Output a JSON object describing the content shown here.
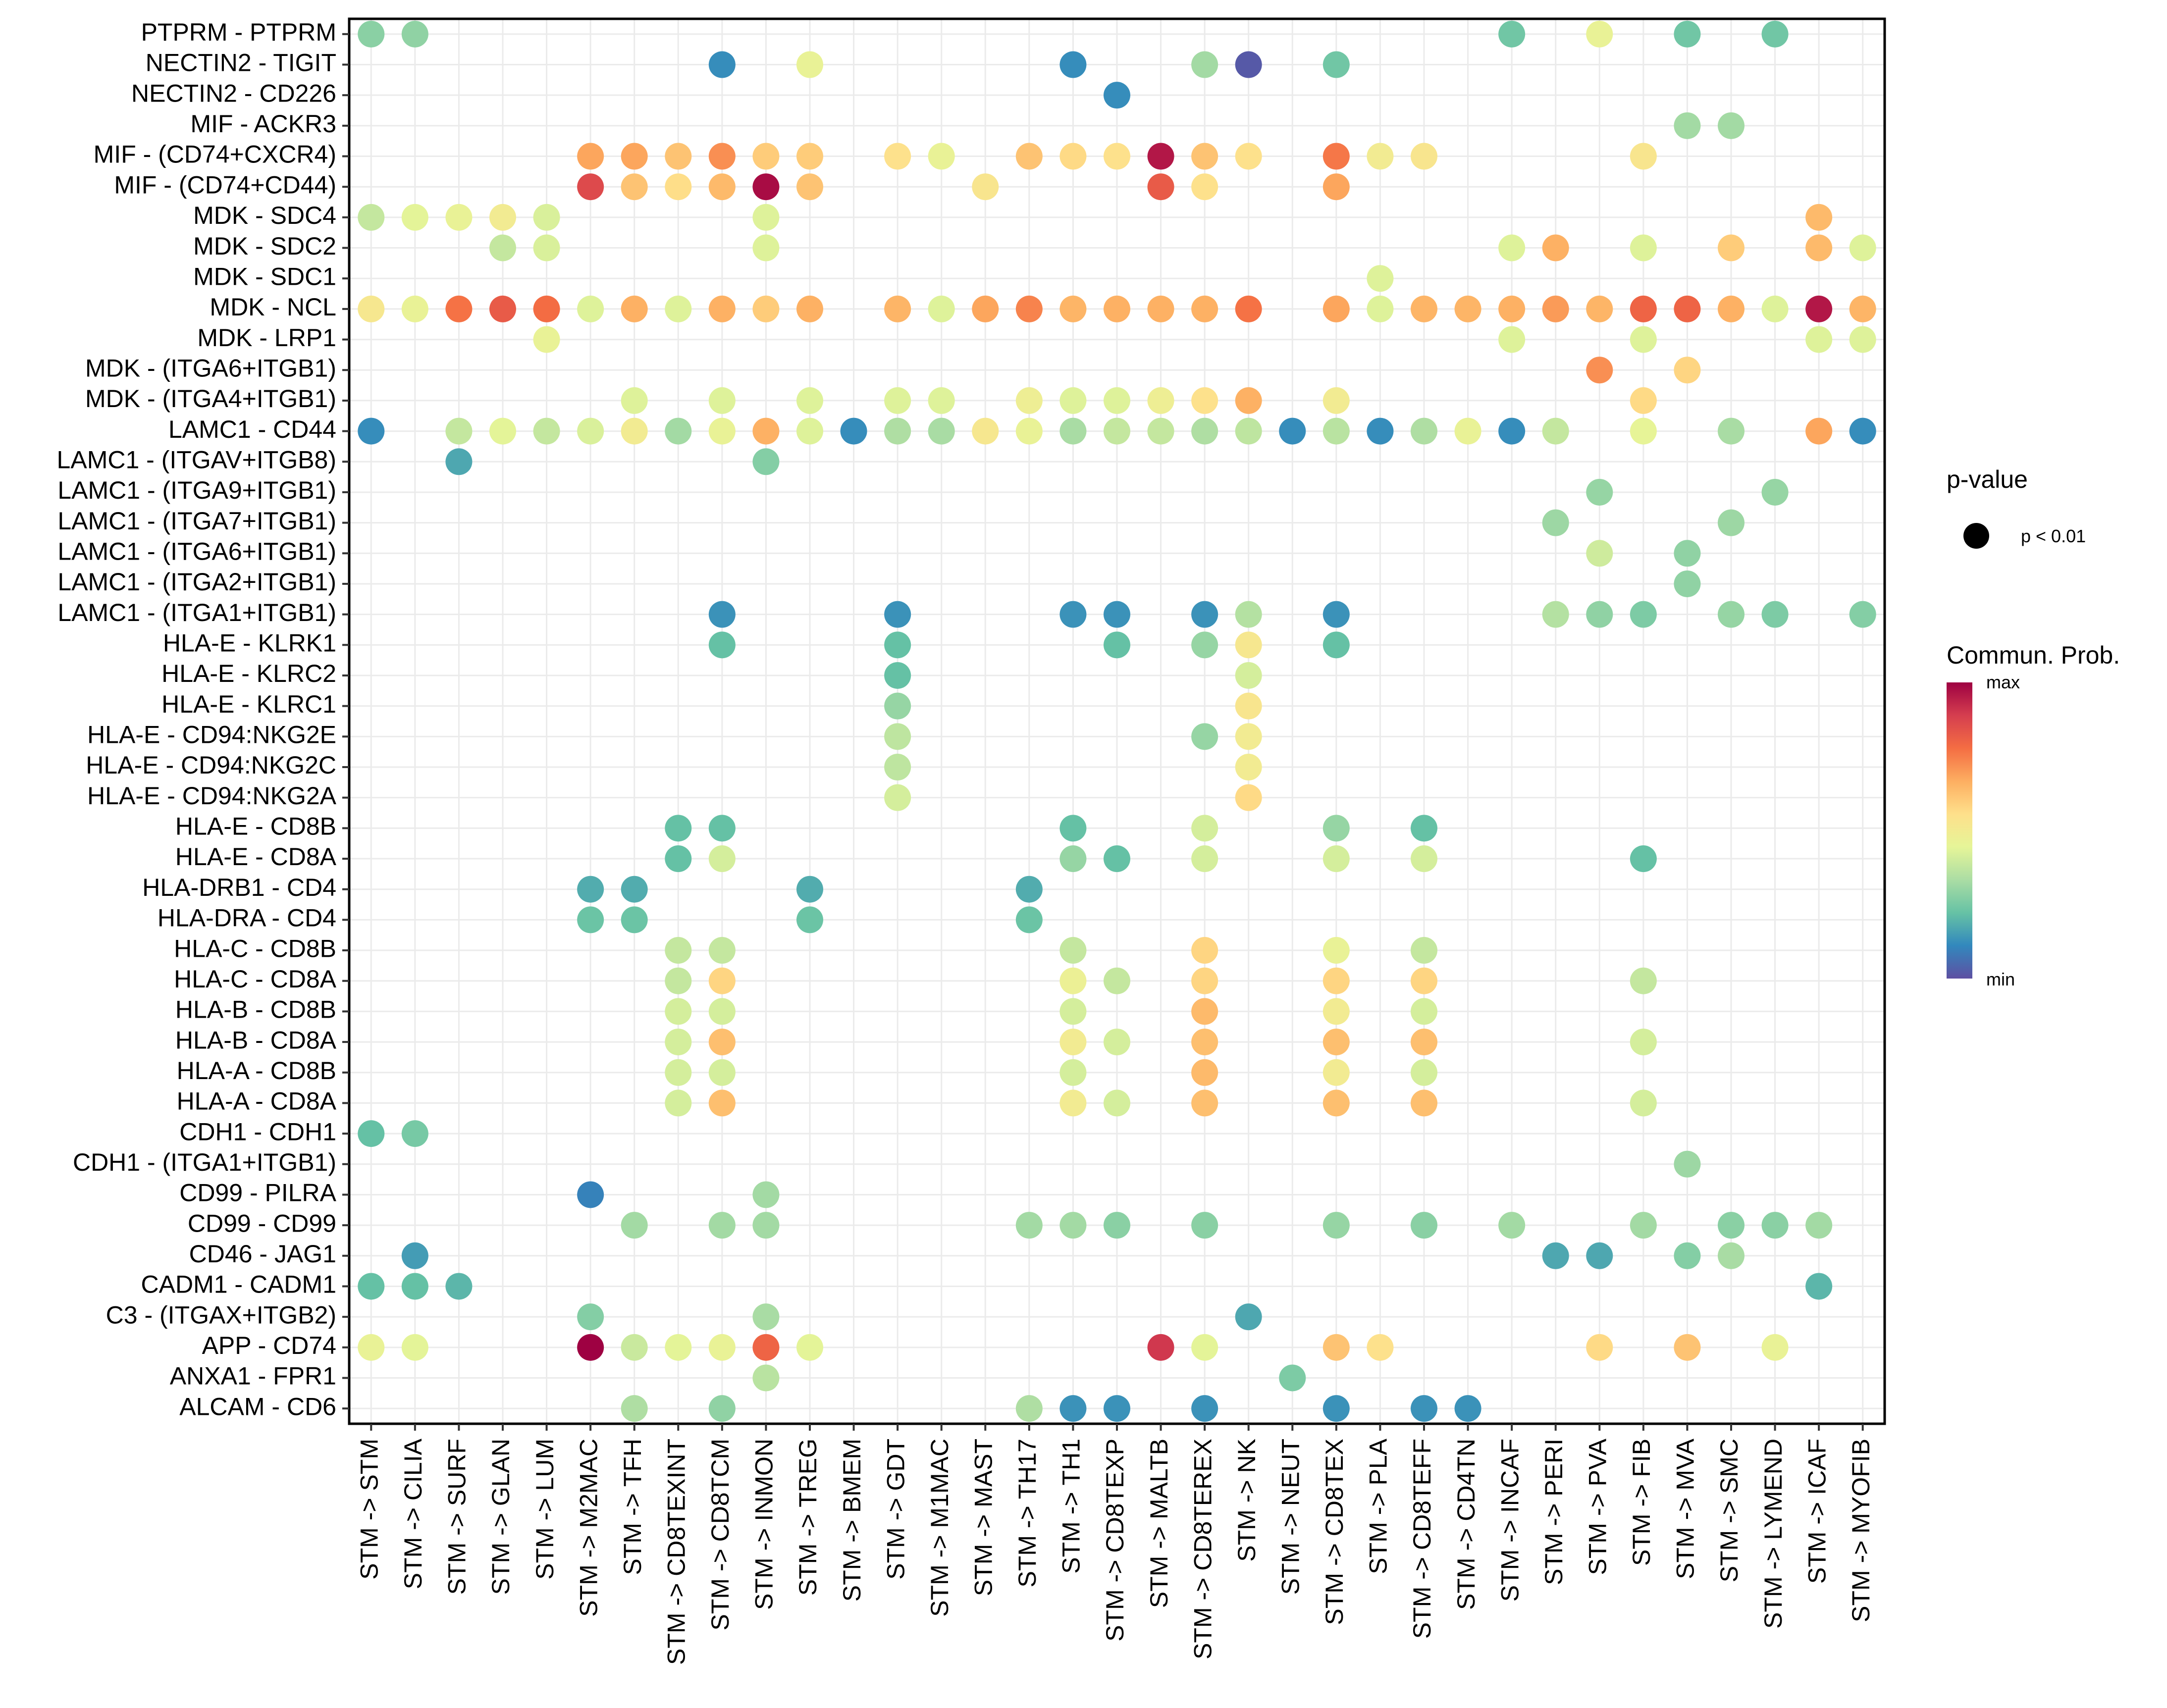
{
  "chart_data": {
    "type": "scatter",
    "subtype": "dot-matrix",
    "title": "",
    "xlabel": "",
    "ylabel": "",
    "grid": true,
    "x_categories": [
      "STM -> STM",
      "STM -> CILIA",
      "STM -> SURF",
      "STM -> GLAN",
      "STM -> LUM",
      "STM -> M2MAC",
      "STM -> TFH",
      "STM -> CD8TEXINT",
      "STM -> CD8TCM",
      "STM -> INMON",
      "STM -> TREG",
      "STM -> BMEM",
      "STM -> GDT",
      "STM -> M1MAC",
      "STM -> MAST",
      "STM -> TH17",
      "STM -> TH1",
      "STM -> CD8TEXP",
      "STM -> MALTB",
      "STM -> CD8TEREX",
      "STM -> NK",
      "STM -> NEUT",
      "STM -> CD8TEX",
      "STM -> PLA",
      "STM -> CD8TEFF",
      "STM -> CD4TN",
      "STM -> INCAF",
      "STM -> PERI",
      "STM -> PVA",
      "STM -> FIB",
      "STM -> MVA",
      "STM -> SMC",
      "STM -> LYMEND",
      "STM -> ICAF",
      "STM -> MYOFIB"
    ],
    "y_categories": [
      "PTPRM - PTPRM",
      "NECTIN2 - TIGIT",
      "NECTIN2 - CD226",
      "MIF - ACKR3",
      "MIF - (CD74+CXCR4)",
      "MIF - (CD74+CD44)",
      "MDK - SDC4",
      "MDK - SDC2",
      "MDK - SDC1",
      "MDK - NCL",
      "MDK - LRP1",
      "MDK - (ITGA6+ITGB1)",
      "MDK - (ITGA4+ITGB1)",
      "LAMC1 - CD44",
      "LAMC1 - (ITGAV+ITGB8)",
      "LAMC1 - (ITGA9+ITGB1)",
      "LAMC1 - (ITGA7+ITGB1)",
      "LAMC1 - (ITGA6+ITGB1)",
      "LAMC1 - (ITGA2+ITGB1)",
      "LAMC1 - (ITGA1+ITGB1)",
      "HLA-E - KLRK1",
      "HLA-E - KLRC2",
      "HLA-E - KLRC1",
      "HLA-E - CD94:NKG2E",
      "HLA-E - CD94:NKG2C",
      "HLA-E - CD94:NKG2A",
      "HLA-E - CD8B",
      "HLA-E - CD8A",
      "HLA-DRB1 - CD4",
      "HLA-DRA - CD4",
      "HLA-C - CD8B",
      "HLA-C - CD8A",
      "HLA-B - CD8B",
      "HLA-B - CD8A",
      "HLA-A - CD8B",
      "HLA-A - CD8A",
      "CDH1 - CDH1",
      "CDH1 - (ITGA1+ITGB1)",
      "CD99 - PILRA",
      "CD99 - CD99",
      "CD46 - JAG1",
      "CADM1 - CADM1",
      "C3 - (ITGAX+ITGB2)",
      "APP - CD74",
      "ANXA1 - FPR1",
      "ALCAM - CD6"
    ],
    "value_scale": "relative communication probability, 0 = min, 1 = max",
    "points_note": "each point: [x_index, y_index, prob]",
    "points": [
      [
        0,
        0,
        0.28
      ],
      [
        1,
        0,
        0.29
      ],
      [
        26,
        0,
        0.24
      ],
      [
        28,
        0,
        0.46
      ],
      [
        30,
        0,
        0.24
      ],
      [
        32,
        0,
        0.24
      ],
      [
        8,
        1,
        0.12
      ],
      [
        10,
        1,
        0.46
      ],
      [
        16,
        1,
        0.12
      ],
      [
        19,
        1,
        0.32
      ],
      [
        20,
        1,
        0.02
      ],
      [
        22,
        1,
        0.24
      ],
      [
        17,
        2,
        0.12
      ],
      [
        30,
        3,
        0.32
      ],
      [
        31,
        3,
        0.32
      ],
      [
        5,
        4,
        0.68
      ],
      [
        6,
        4,
        0.68
      ],
      [
        7,
        4,
        0.62
      ],
      [
        8,
        4,
        0.72
      ],
      [
        9,
        4,
        0.6
      ],
      [
        10,
        4,
        0.6
      ],
      [
        12,
        4,
        0.55
      ],
      [
        13,
        4,
        0.46
      ],
      [
        15,
        4,
        0.62
      ],
      [
        16,
        4,
        0.57
      ],
      [
        17,
        4,
        0.55
      ],
      [
        18,
        4,
        0.96
      ],
      [
        19,
        4,
        0.62
      ],
      [
        20,
        4,
        0.55
      ],
      [
        22,
        4,
        0.76
      ],
      [
        23,
        4,
        0.5
      ],
      [
        24,
        4,
        0.53
      ],
      [
        29,
        4,
        0.53
      ],
      [
        5,
        5,
        0.86
      ],
      [
        6,
        5,
        0.62
      ],
      [
        7,
        5,
        0.56
      ],
      [
        8,
        5,
        0.64
      ],
      [
        9,
        5,
        0.98
      ],
      [
        10,
        5,
        0.62
      ],
      [
        14,
        5,
        0.53
      ],
      [
        18,
        5,
        0.82
      ],
      [
        19,
        5,
        0.55
      ],
      [
        22,
        5,
        0.68
      ],
      [
        0,
        6,
        0.38
      ],
      [
        1,
        6,
        0.44
      ],
      [
        2,
        6,
        0.46
      ],
      [
        3,
        6,
        0.5
      ],
      [
        4,
        6,
        0.42
      ],
      [
        9,
        6,
        0.43
      ],
      [
        33,
        6,
        0.64
      ],
      [
        3,
        7,
        0.38
      ],
      [
        4,
        7,
        0.42
      ],
      [
        9,
        7,
        0.43
      ],
      [
        26,
        7,
        0.43
      ],
      [
        27,
        7,
        0.66
      ],
      [
        29,
        7,
        0.43
      ],
      [
        31,
        7,
        0.6
      ],
      [
        33,
        7,
        0.64
      ],
      [
        34,
        7,
        0.43
      ],
      [
        23,
        8,
        0.43
      ],
      [
        0,
        9,
        0.52
      ],
      [
        1,
        9,
        0.46
      ],
      [
        2,
        9,
        0.77
      ],
      [
        3,
        9,
        0.82
      ],
      [
        4,
        9,
        0.78
      ],
      [
        5,
        9,
        0.43
      ],
      [
        6,
        9,
        0.66
      ],
      [
        7,
        9,
        0.43
      ],
      [
        8,
        9,
        0.66
      ],
      [
        9,
        9,
        0.6
      ],
      [
        10,
        9,
        0.66
      ],
      [
        12,
        9,
        0.65
      ],
      [
        13,
        9,
        0.43
      ],
      [
        14,
        9,
        0.68
      ],
      [
        15,
        9,
        0.74
      ],
      [
        16,
        9,
        0.65
      ],
      [
        17,
        9,
        0.66
      ],
      [
        18,
        9,
        0.66
      ],
      [
        19,
        9,
        0.66
      ],
      [
        20,
        9,
        0.77
      ],
      [
        22,
        9,
        0.68
      ],
      [
        23,
        9,
        0.43
      ],
      [
        24,
        9,
        0.65
      ],
      [
        25,
        9,
        0.65
      ],
      [
        26,
        9,
        0.66
      ],
      [
        27,
        9,
        0.7
      ],
      [
        28,
        9,
        0.65
      ],
      [
        29,
        9,
        0.8
      ],
      [
        30,
        9,
        0.8
      ],
      [
        31,
        9,
        0.66
      ],
      [
        32,
        9,
        0.43
      ],
      [
        33,
        9,
        0.96
      ],
      [
        34,
        9,
        0.65
      ],
      [
        4,
        10,
        0.46
      ],
      [
        26,
        10,
        0.43
      ],
      [
        29,
        10,
        0.43
      ],
      [
        33,
        10,
        0.43
      ],
      [
        34,
        10,
        0.43
      ],
      [
        28,
        11,
        0.72
      ],
      [
        30,
        11,
        0.58
      ],
      [
        6,
        12,
        0.43
      ],
      [
        8,
        12,
        0.43
      ],
      [
        10,
        12,
        0.43
      ],
      [
        12,
        12,
        0.43
      ],
      [
        13,
        12,
        0.43
      ],
      [
        15,
        12,
        0.48
      ],
      [
        16,
        12,
        0.43
      ],
      [
        17,
        12,
        0.43
      ],
      [
        18,
        12,
        0.48
      ],
      [
        19,
        12,
        0.55
      ],
      [
        20,
        12,
        0.66
      ],
      [
        22,
        12,
        0.5
      ],
      [
        29,
        12,
        0.57
      ],
      [
        0,
        13,
        0.12
      ],
      [
        2,
        13,
        0.38
      ],
      [
        3,
        13,
        0.44
      ],
      [
        4,
        13,
        0.38
      ],
      [
        5,
        13,
        0.42
      ],
      [
        6,
        13,
        0.5
      ],
      [
        7,
        13,
        0.32
      ],
      [
        8,
        13,
        0.46
      ],
      [
        9,
        13,
        0.66
      ],
      [
        10,
        13,
        0.43
      ],
      [
        11,
        13,
        0.12
      ],
      [
        12,
        13,
        0.34
      ],
      [
        13,
        13,
        0.33
      ],
      [
        14,
        13,
        0.52
      ],
      [
        15,
        13,
        0.46
      ],
      [
        16,
        13,
        0.33
      ],
      [
        17,
        13,
        0.38
      ],
      [
        18,
        13,
        0.38
      ],
      [
        19,
        13,
        0.34
      ],
      [
        20,
        13,
        0.37
      ],
      [
        21,
        13,
        0.12
      ],
      [
        22,
        13,
        0.36
      ],
      [
        23,
        13,
        0.12
      ],
      [
        24,
        13,
        0.34
      ],
      [
        25,
        13,
        0.46
      ],
      [
        26,
        13,
        0.12
      ],
      [
        27,
        13,
        0.38
      ],
      [
        29,
        13,
        0.45
      ],
      [
        31,
        13,
        0.33
      ],
      [
        33,
        13,
        0.68
      ],
      [
        34,
        13,
        0.12
      ],
      [
        2,
        14,
        0.17
      ],
      [
        9,
        14,
        0.27
      ],
      [
        28,
        15,
        0.3
      ],
      [
        32,
        15,
        0.3
      ],
      [
        27,
        16,
        0.31
      ],
      [
        31,
        16,
        0.31
      ],
      [
        28,
        17,
        0.4
      ],
      [
        30,
        17,
        0.29
      ],
      [
        30,
        18,
        0.29
      ],
      [
        8,
        19,
        0.13
      ],
      [
        12,
        19,
        0.13
      ],
      [
        16,
        19,
        0.13
      ],
      [
        17,
        19,
        0.13
      ],
      [
        19,
        19,
        0.13
      ],
      [
        20,
        19,
        0.35
      ],
      [
        22,
        19,
        0.13
      ],
      [
        27,
        19,
        0.35
      ],
      [
        28,
        19,
        0.29
      ],
      [
        29,
        19,
        0.26
      ],
      [
        31,
        19,
        0.3
      ],
      [
        32,
        19,
        0.26
      ],
      [
        34,
        19,
        0.27
      ],
      [
        8,
        20,
        0.22
      ],
      [
        12,
        20,
        0.22
      ],
      [
        17,
        20,
        0.22
      ],
      [
        19,
        20,
        0.3
      ],
      [
        20,
        20,
        0.52
      ],
      [
        22,
        20,
        0.22
      ],
      [
        12,
        21,
        0.22
      ],
      [
        20,
        21,
        0.41
      ],
      [
        12,
        22,
        0.3
      ],
      [
        20,
        22,
        0.53
      ],
      [
        12,
        23,
        0.37
      ],
      [
        19,
        23,
        0.3
      ],
      [
        20,
        23,
        0.5
      ],
      [
        12,
        24,
        0.37
      ],
      [
        20,
        24,
        0.5
      ],
      [
        12,
        25,
        0.41
      ],
      [
        20,
        25,
        0.57
      ],
      [
        7,
        26,
        0.22
      ],
      [
        8,
        26,
        0.22
      ],
      [
        16,
        26,
        0.22
      ],
      [
        19,
        26,
        0.41
      ],
      [
        22,
        26,
        0.3
      ],
      [
        24,
        26,
        0.22
      ],
      [
        7,
        27,
        0.22
      ],
      [
        8,
        27,
        0.41
      ],
      [
        16,
        27,
        0.3
      ],
      [
        17,
        27,
        0.22
      ],
      [
        19,
        27,
        0.41
      ],
      [
        22,
        27,
        0.41
      ],
      [
        24,
        27,
        0.41
      ],
      [
        29,
        27,
        0.22
      ],
      [
        5,
        28,
        0.18
      ],
      [
        6,
        28,
        0.18
      ],
      [
        10,
        28,
        0.18
      ],
      [
        15,
        28,
        0.18
      ],
      [
        5,
        29,
        0.23
      ],
      [
        6,
        29,
        0.23
      ],
      [
        10,
        29,
        0.23
      ],
      [
        15,
        29,
        0.23
      ],
      [
        7,
        30,
        0.38
      ],
      [
        8,
        30,
        0.38
      ],
      [
        16,
        30,
        0.38
      ],
      [
        19,
        30,
        0.58
      ],
      [
        22,
        30,
        0.46
      ],
      [
        24,
        30,
        0.38
      ],
      [
        7,
        31,
        0.38
      ],
      [
        8,
        31,
        0.58
      ],
      [
        16,
        31,
        0.47
      ],
      [
        17,
        31,
        0.38
      ],
      [
        19,
        31,
        0.58
      ],
      [
        22,
        31,
        0.58
      ],
      [
        24,
        31,
        0.58
      ],
      [
        29,
        31,
        0.38
      ],
      [
        7,
        32,
        0.41
      ],
      [
        8,
        32,
        0.41
      ],
      [
        16,
        32,
        0.41
      ],
      [
        19,
        32,
        0.64
      ],
      [
        22,
        32,
        0.5
      ],
      [
        24,
        32,
        0.41
      ],
      [
        7,
        33,
        0.41
      ],
      [
        8,
        33,
        0.63
      ],
      [
        16,
        33,
        0.5
      ],
      [
        17,
        33,
        0.41
      ],
      [
        19,
        33,
        0.63
      ],
      [
        22,
        33,
        0.63
      ],
      [
        24,
        33,
        0.63
      ],
      [
        29,
        33,
        0.41
      ],
      [
        7,
        34,
        0.41
      ],
      [
        8,
        34,
        0.41
      ],
      [
        16,
        34,
        0.41
      ],
      [
        19,
        34,
        0.64
      ],
      [
        22,
        34,
        0.5
      ],
      [
        24,
        34,
        0.41
      ],
      [
        7,
        35,
        0.41
      ],
      [
        8,
        35,
        0.63
      ],
      [
        16,
        35,
        0.5
      ],
      [
        17,
        35,
        0.41
      ],
      [
        19,
        35,
        0.63
      ],
      [
        22,
        35,
        0.63
      ],
      [
        24,
        35,
        0.63
      ],
      [
        29,
        35,
        0.41
      ],
      [
        0,
        36,
        0.22
      ],
      [
        1,
        36,
        0.25
      ],
      [
        30,
        37,
        0.31
      ],
      [
        5,
        38,
        0.1
      ],
      [
        9,
        38,
        0.32
      ],
      [
        6,
        39,
        0.32
      ],
      [
        8,
        39,
        0.32
      ],
      [
        9,
        39,
        0.32
      ],
      [
        15,
        39,
        0.32
      ],
      [
        16,
        39,
        0.32
      ],
      [
        17,
        39,
        0.28
      ],
      [
        19,
        39,
        0.28
      ],
      [
        22,
        39,
        0.3
      ],
      [
        24,
        39,
        0.28
      ],
      [
        26,
        39,
        0.32
      ],
      [
        29,
        39,
        0.32
      ],
      [
        31,
        39,
        0.28
      ],
      [
        32,
        39,
        0.28
      ],
      [
        33,
        39,
        0.32
      ],
      [
        1,
        40,
        0.15
      ],
      [
        27,
        40,
        0.17
      ],
      [
        28,
        40,
        0.17
      ],
      [
        30,
        40,
        0.27
      ],
      [
        31,
        40,
        0.33
      ],
      [
        0,
        41,
        0.22
      ],
      [
        1,
        41,
        0.22
      ],
      [
        2,
        41,
        0.2
      ],
      [
        33,
        41,
        0.2
      ],
      [
        5,
        42,
        0.27
      ],
      [
        9,
        42,
        0.33
      ],
      [
        20,
        42,
        0.17
      ],
      [
        0,
        43,
        0.46
      ],
      [
        1,
        43,
        0.44
      ],
      [
        5,
        43,
        1.0
      ],
      [
        6,
        43,
        0.39
      ],
      [
        7,
        43,
        0.44
      ],
      [
        8,
        43,
        0.46
      ],
      [
        9,
        43,
        0.8
      ],
      [
        10,
        43,
        0.44
      ],
      [
        18,
        43,
        0.9
      ],
      [
        19,
        43,
        0.44
      ],
      [
        22,
        43,
        0.62
      ],
      [
        23,
        43,
        0.55
      ],
      [
        28,
        43,
        0.57
      ],
      [
        30,
        43,
        0.62
      ],
      [
        32,
        43,
        0.46
      ],
      [
        9,
        44,
        0.36
      ],
      [
        21,
        44,
        0.26
      ],
      [
        6,
        45,
        0.34
      ],
      [
        8,
        45,
        0.29
      ],
      [
        15,
        45,
        0.34
      ],
      [
        16,
        45,
        0.13
      ],
      [
        17,
        45,
        0.13
      ],
      [
        19,
        45,
        0.13
      ],
      [
        22,
        45,
        0.13
      ],
      [
        24,
        45,
        0.13
      ],
      [
        25,
        45,
        0.13
      ]
    ],
    "legend": {
      "placement": "right",
      "size_legend": {
        "title": "p-value",
        "entries": [
          "p < 0.01"
        ]
      },
      "color_legend": {
        "title": "Commun. Prob.",
        "max_label": "max",
        "min_label": "min",
        "palette": [
          "#5E4FA2",
          "#3288BD",
          "#66C2A5",
          "#ABDDA4",
          "#E6F598",
          "#FEE08B",
          "#FDAE61",
          "#F46D43",
          "#D53E4F",
          "#9E0142"
        ]
      }
    }
  }
}
